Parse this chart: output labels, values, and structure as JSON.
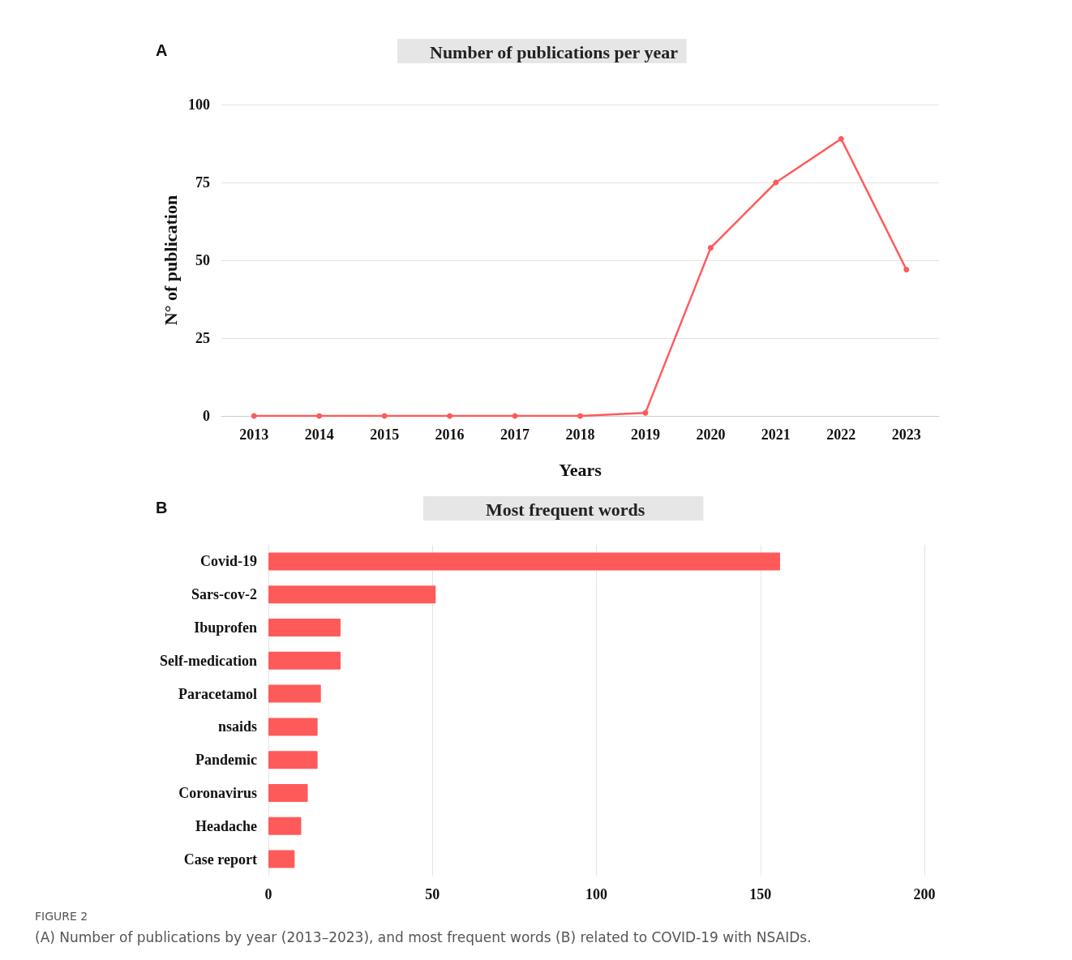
{
  "chart_data": [
    {
      "type": "line",
      "title": "Number of publications per year",
      "xlabel": "Years",
      "ylabel": "N° of publication",
      "categories": [
        "2013",
        "2014",
        "2015",
        "2016",
        "2017",
        "2018",
        "2019",
        "2020",
        "2021",
        "2022",
        "2023"
      ],
      "series": [
        {
          "color": "#ff5a5a",
          "values": [
            0,
            0,
            0,
            0,
            0,
            0,
            1,
            54,
            75,
            89,
            47
          ]
        }
      ],
      "ylim": [
        0,
        100
      ],
      "yticks": [
        0,
        25,
        50,
        75,
        100
      ],
      "grid": "y",
      "marker": "circle",
      "line_style": "solid",
      "annotations": [
        "A"
      ]
    },
    {
      "type": "bar",
      "orientation": "horizontal",
      "title": "Most frequent words",
      "categories": [
        "Covid-19",
        "Sars-cov-2",
        "Ibuprofen",
        "Self-medication",
        "Paracetamol",
        "nsaids",
        "Pandemic",
        "Coronavirus",
        "Headache",
        "Case report"
      ],
      "series": [
        {
          "color": "#ff5a5a",
          "values": [
            156,
            51,
            22,
            22,
            16,
            15,
            15,
            12,
            10,
            8
          ]
        }
      ],
      "xlim": [
        0,
        200
      ],
      "xticks": [
        0,
        50,
        100,
        150,
        200
      ],
      "grid": "x",
      "annotations": [
        "B",
        "FIGURE 2",
        "(A) Number of publications by year (2013–2023), and most frequent words (B) related to COVID-19 with NSAIDs."
      ]
    }
  ]
}
